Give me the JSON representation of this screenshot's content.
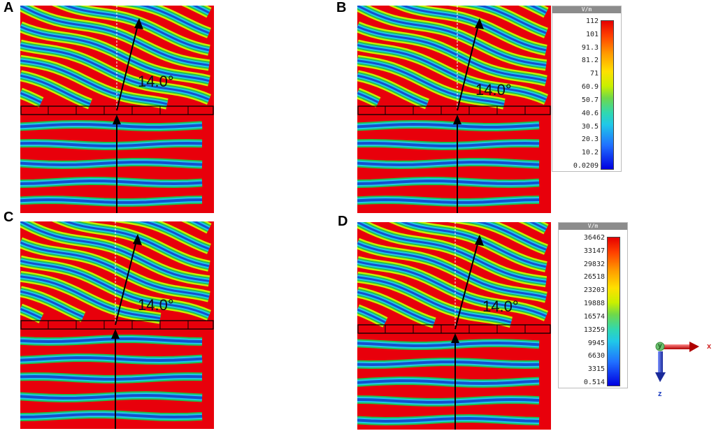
{
  "panels": {
    "a": {
      "label": "A",
      "angle": "14.0°"
    },
    "b": {
      "label": "B",
      "angle": "14.0°"
    },
    "c": {
      "label": "C",
      "angle": "14.0°"
    },
    "d": {
      "label": "D",
      "angle": "14.0°"
    }
  },
  "colorbar_top": {
    "unit": "V/m",
    "ticks": [
      "112",
      "101",
      "91.3",
      "81.2",
      "71",
      "60.9",
      "50.7",
      "40.6",
      "30.5",
      "20.3",
      "10.2",
      "0.0209"
    ]
  },
  "colorbar_bottom": {
    "unit": "V/m",
    "ticks": [
      "36462",
      "33147",
      "29832",
      "26518",
      "23203",
      "19888",
      "16574",
      "13259",
      "9945",
      "6630",
      "3315",
      "0.514"
    ]
  },
  "axes": {
    "origin": "y",
    "x": "x",
    "z": "z"
  },
  "colors": {
    "red": "#e8000b",
    "blue": "#1450d0",
    "accent_x": "#d02020",
    "accent_z": "#2040c0"
  }
}
